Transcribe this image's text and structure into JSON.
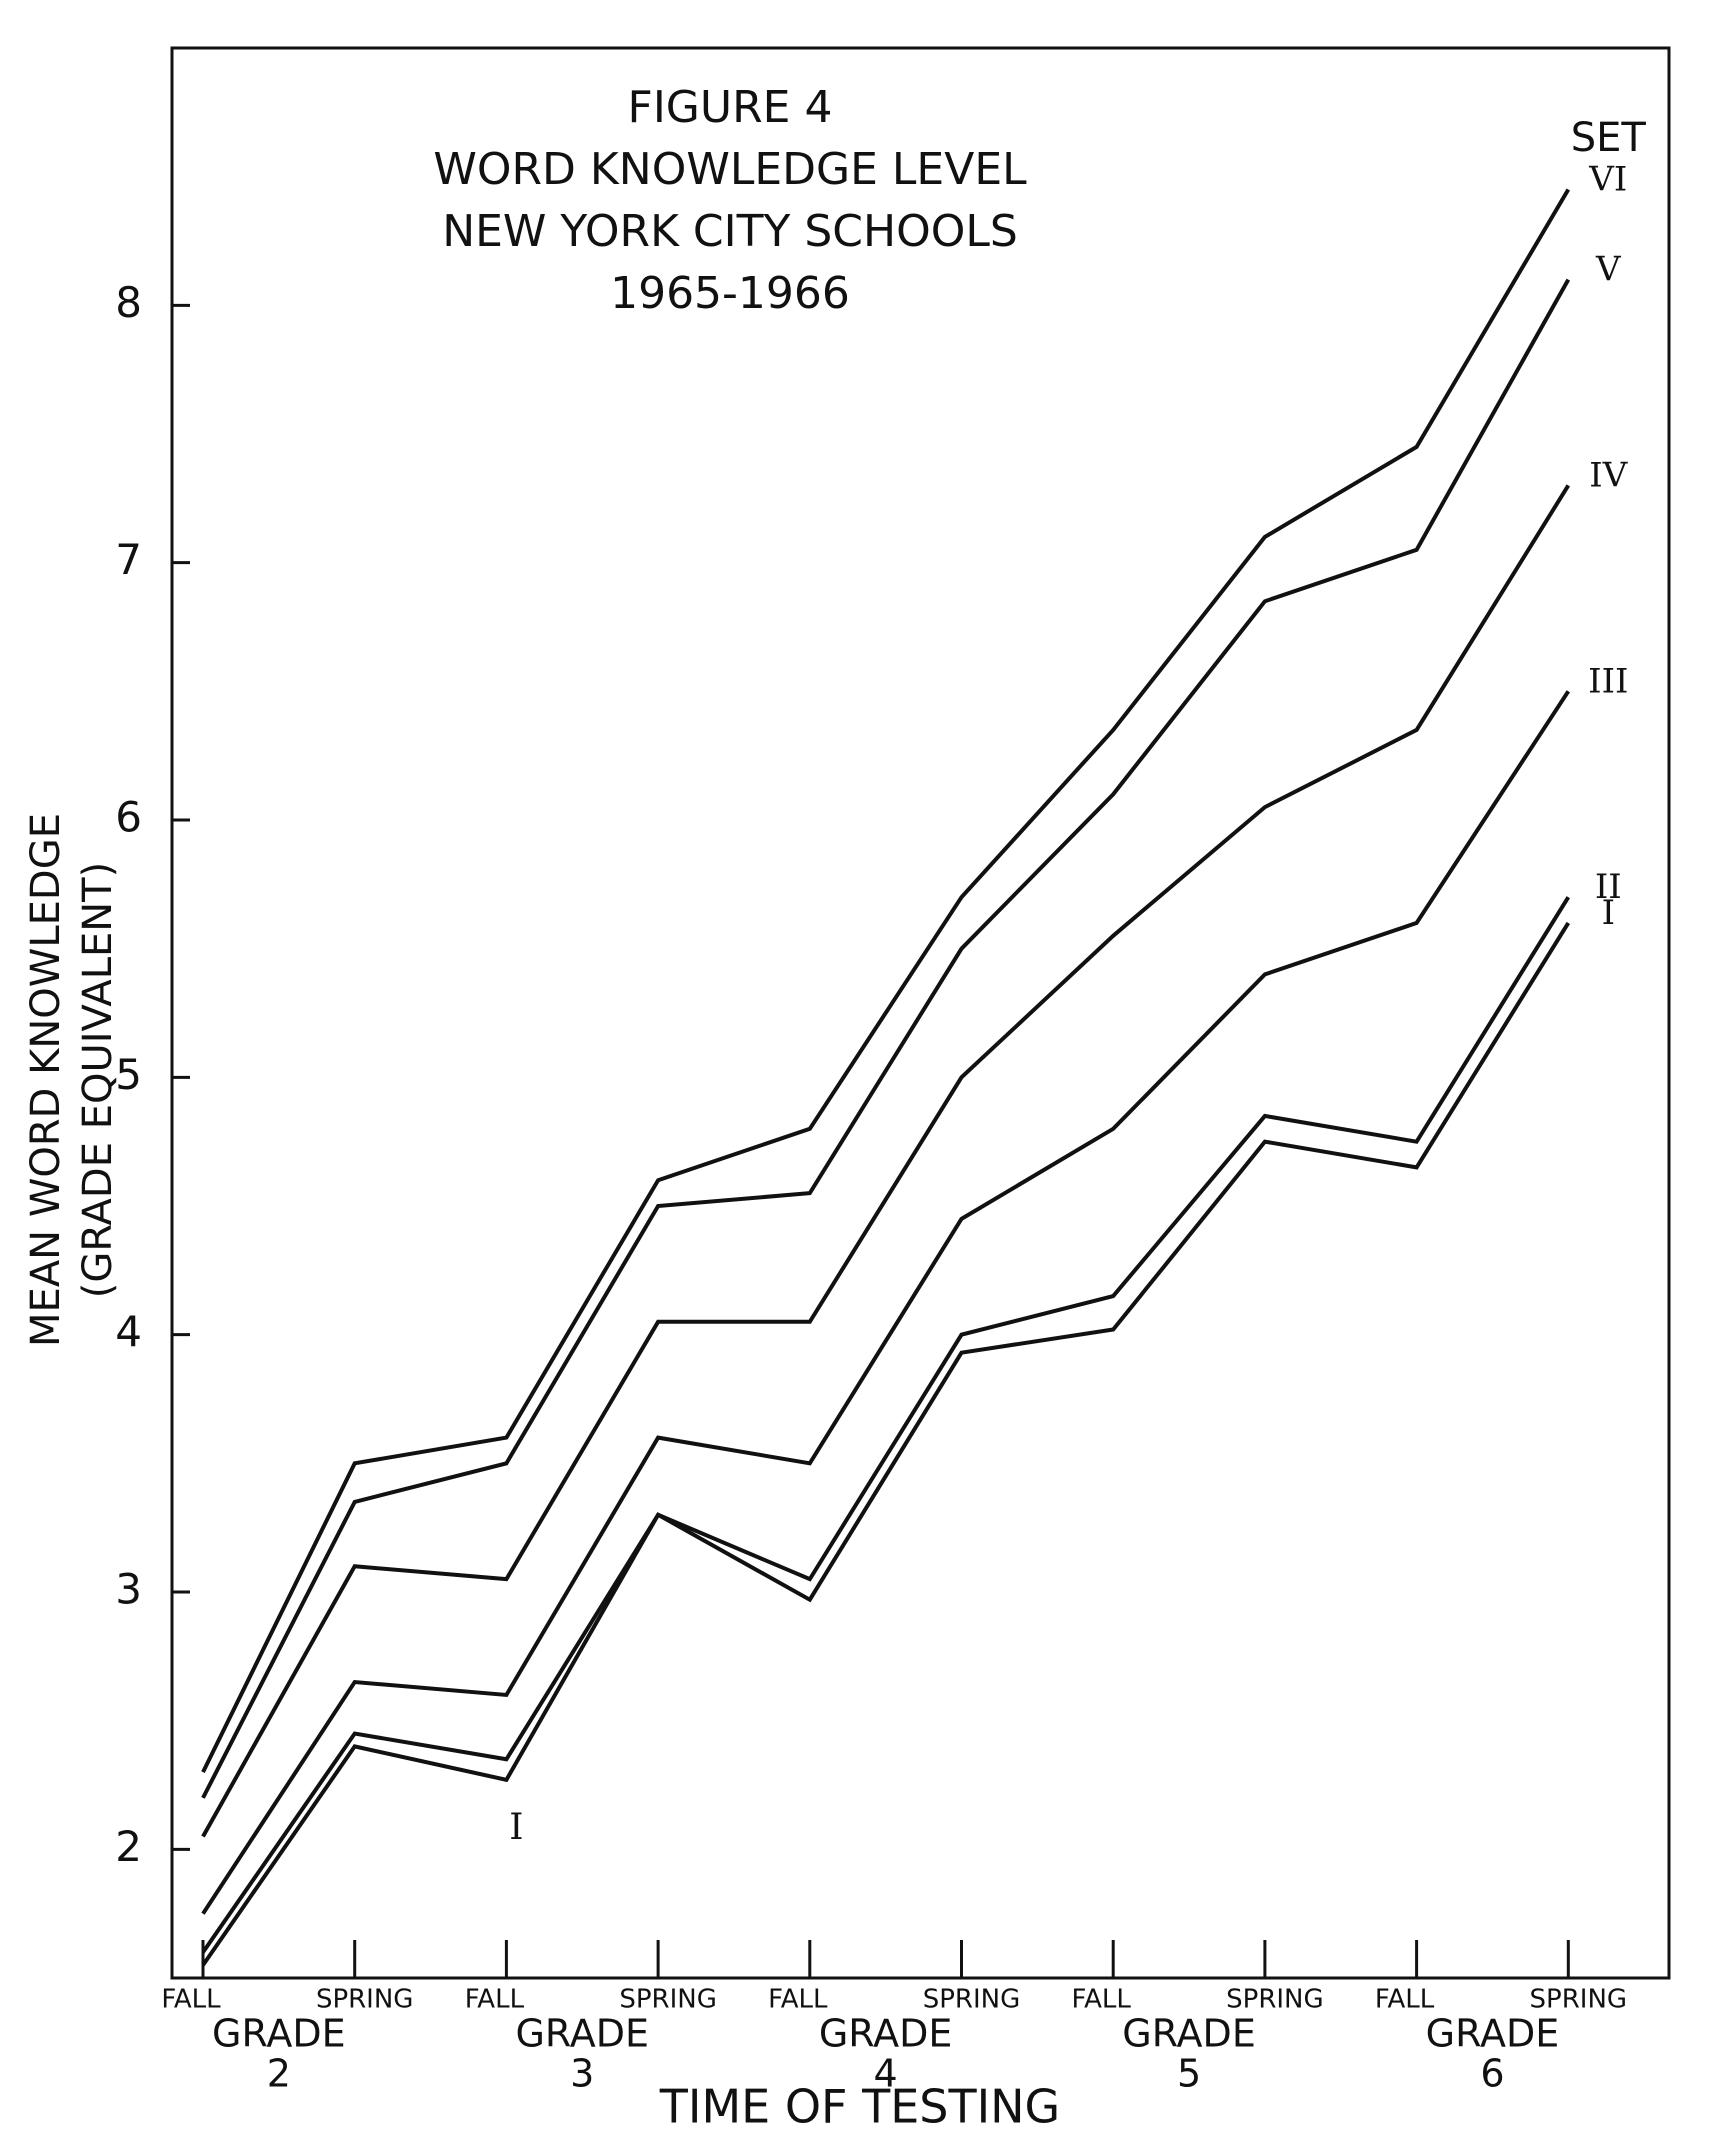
{
  "chart_data": {
    "type": "line",
    "title": [
      "FIGURE 4",
      "WORD KNOWLEDGE LEVEL",
      "NEW YORK CITY SCHOOLS",
      "1965-1966"
    ],
    "y_label": [
      "MEAN WORD KNOWLEDGE",
      "(GRADE EQUIVALENT)"
    ],
    "x_label": "TIME OF TESTING",
    "legend_title": "SET",
    "annotation": "I",
    "categories": [
      "FALL",
      "SPRING",
      "FALL",
      "SPRING",
      "FALL",
      "SPRING",
      "FALL",
      "SPRING",
      "FALL",
      "SPRING"
    ],
    "groups": [
      [
        "GRADE",
        "2"
      ],
      [
        "GRADE",
        "3"
      ],
      [
        "GRADE",
        "4"
      ],
      [
        "GRADE",
        "5"
      ],
      [
        "GRADE",
        "6"
      ]
    ],
    "series": [
      {
        "name": "VI",
        "color": "#111111",
        "values": [
          2.3,
          3.5,
          3.6,
          4.6,
          4.8,
          5.7,
          6.35,
          7.1,
          7.45,
          8.45
        ]
      },
      {
        "name": "V",
        "color": "#111111",
        "values": [
          2.2,
          3.35,
          3.5,
          4.5,
          4.55,
          5.5,
          6.1,
          6.85,
          7.05,
          8.1
        ]
      },
      {
        "name": "IV",
        "color": "#111111",
        "values": [
          2.05,
          3.1,
          3.05,
          4.05,
          4.05,
          5.0,
          5.55,
          6.05,
          6.35,
          7.3
        ]
      },
      {
        "name": "III",
        "color": "#111111",
        "values": [
          1.75,
          2.65,
          2.6,
          3.6,
          3.5,
          4.45,
          4.8,
          5.4,
          5.6,
          6.5
        ]
      },
      {
        "name": "II",
        "color": "#111111",
        "values": [
          1.6,
          2.45,
          2.35,
          3.3,
          3.05,
          4.0,
          4.15,
          4.85,
          4.75,
          5.7
        ]
      },
      {
        "name": "I",
        "color": "#111111",
        "values": [
          1.55,
          2.4,
          2.27,
          3.3,
          2.97,
          3.93,
          4.02,
          4.75,
          4.65,
          5.6
        ]
      }
    ],
    "ylim": [
      1.5,
      9
    ],
    "yticks": [
      2,
      3,
      4,
      5,
      6,
      7,
      8
    ],
    "grid": false
  }
}
